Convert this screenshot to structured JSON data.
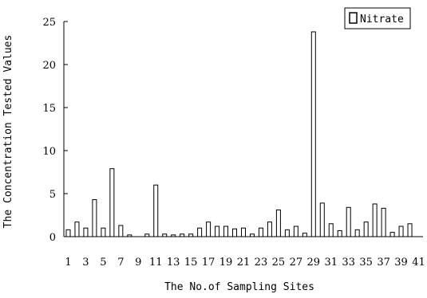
{
  "chart_data": {
    "type": "bar",
    "ylabel": "The Concentration Tested Values",
    "xlabel": "The No.of Sampling Sites",
    "legend": "Nitrate",
    "legend_position": "top-right",
    "ylim": [
      0,
      25
    ],
    "y_ticks": [
      "0",
      "5",
      "10",
      "15",
      "20",
      "25"
    ],
    "x_tick_labels": [
      "1",
      "3",
      "5",
      "7",
      "9",
      "11",
      "13",
      "15",
      "17",
      "19",
      "21",
      "23",
      "25",
      "27",
      "29",
      "31",
      "33",
      "35",
      "37",
      "39",
      "41"
    ],
    "categories": [
      "1",
      "2",
      "3",
      "4",
      "5",
      "6",
      "7",
      "8",
      "9",
      "10",
      "11",
      "12",
      "13",
      "14",
      "15",
      "16",
      "17",
      "18",
      "19",
      "20",
      "21",
      "22",
      "23",
      "24",
      "25",
      "26",
      "27",
      "28",
      "29",
      "30",
      "31",
      "32",
      "33",
      "34",
      "35",
      "36",
      "37",
      "38",
      "39",
      "40",
      "41"
    ],
    "series": [
      {
        "name": "Nitrate",
        "values": [
          0.8,
          1.7,
          1.0,
          4.3,
          1.0,
          7.9,
          1.3,
          0.2,
          0.0,
          0.3,
          6.0,
          0.3,
          0.2,
          0.3,
          0.3,
          1.0,
          1.7,
          1.2,
          1.2,
          0.9,
          1.0,
          0.3,
          1.0,
          1.7,
          3.1,
          0.8,
          1.2,
          0.4,
          23.8,
          3.9,
          1.5,
          0.7,
          3.4,
          0.8,
          1.7,
          3.8,
          3.3,
          0.5,
          1.2,
          1.5,
          0.0
        ]
      }
    ],
    "colors": {
      "bar_fill": "#ffffff",
      "bar_stroke": "#000000"
    }
  }
}
